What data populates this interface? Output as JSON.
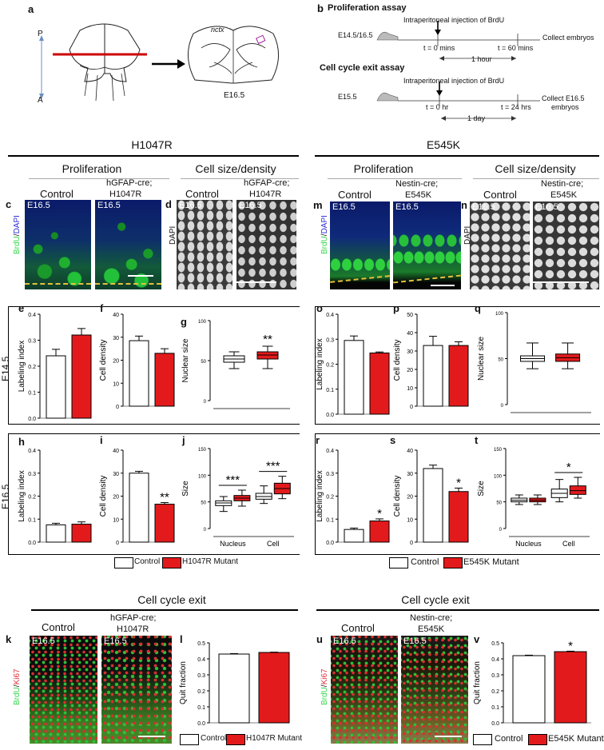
{
  "schematic": {
    "label_a": "a",
    "axis_p": "P",
    "axis_a": "A",
    "section_ncx": "nctx",
    "section_stage": "E16.5"
  },
  "assays": {
    "label_b": "b",
    "prolif_title": "Proliferation assay",
    "prolif_inject": "Intraperitoneal injection of BrdU",
    "prolif_stage": "E14.5/16.5",
    "prolif_t0": "t = 0 mins",
    "prolif_t1": "t = 60 mins",
    "prolif_dur": "1 hour",
    "prolif_collect": "Collect embryos",
    "exit_title": "Cell cycle exit assay",
    "exit_inject": "Intraperitoneal injection of BrdU",
    "exit_stage": "E15.5",
    "exit_t0": "t = 0 hr",
    "exit_t1": "t = 24 hrs",
    "exit_dur": "1 day",
    "exit_collect_1": "Collect E16.5",
    "exit_collect_2": "embryos"
  },
  "headers": {
    "h1047r": "H1047R",
    "e545k": "E545K",
    "proliferation": "Proliferation",
    "cellsize": "Cell size/density",
    "control": "Control",
    "hgfap_1": "hGFAP-cre;",
    "hgfap_2": "H1047R",
    "nestin_1": "Nestin-cre;",
    "nestin_2": "E545K",
    "e145": "E14.5",
    "e165": "E16.5",
    "cellcycle": "Cell cycle exit"
  },
  "panel_letters": {
    "c": "c",
    "d": "d",
    "e": "e",
    "f": "f",
    "g": "g",
    "h": "h",
    "i": "i",
    "j": "j",
    "k": "k",
    "l": "l",
    "m": "m",
    "n": "n",
    "o": "o",
    "p": "p",
    "q": "q",
    "r": "r",
    "s": "s",
    "t": "t",
    "u": "u",
    "v": "v"
  },
  "micro": {
    "stamp": "E16.5",
    "brdu": "BrdU",
    "dapi": "DAPI",
    "ki67": "Ki67",
    "sep": "/"
  },
  "legends": {
    "control": "Control",
    "h1047r_mutant": "H1047R Mutant",
    "e545k_mutant": "E545K Mutant"
  },
  "colors": {
    "mutant": "#e31a1c",
    "control": "#ffffff",
    "brdu": "#37d64b",
    "dapi": "#2a2ad8",
    "ki67": "#e0303a"
  },
  "chart_data": [
    {
      "panel": "e",
      "type": "bar",
      "ylabel": "Labeling index",
      "ylim": [
        0,
        0.4
      ],
      "ticks": [
        "0.0",
        "0.1",
        "0.2",
        "0.3",
        "0.4"
      ],
      "values": [
        0.24,
        0.32
      ],
      "errors": [
        0.025,
        0.025
      ],
      "sig": ""
    },
    {
      "panel": "f",
      "type": "bar",
      "ylabel": "Cell density",
      "ylim": [
        0,
        40
      ],
      "ticks": [
        "0",
        "10",
        "20",
        "30",
        "40"
      ],
      "values": [
        28.5,
        23
      ],
      "errors": [
        2,
        2
      ],
      "sig": ""
    },
    {
      "panel": "g",
      "type": "box",
      "ylabel": "Nuclear size",
      "ylim": [
        0,
        100
      ],
      "ticks": [
        "0",
        "50",
        "100"
      ],
      "boxes": [
        {
          "min": 40,
          "q1": 48,
          "med": 52,
          "q3": 56,
          "max": 61
        },
        {
          "min": 40,
          "q1": 52,
          "med": 57,
          "q3": 61,
          "max": 68
        }
      ],
      "sig": "**"
    },
    {
      "panel": "h",
      "type": "bar",
      "ylabel": "Labeling index",
      "ylim": [
        0,
        0.4
      ],
      "ticks": [
        "0.0",
        "0.1",
        "0.2",
        "0.3",
        "0.4"
      ],
      "values": [
        0.075,
        0.078
      ],
      "errors": [
        0.007,
        0.01
      ],
      "sig": ""
    },
    {
      "panel": "i",
      "type": "bar",
      "ylabel": "Cell density",
      "ylim": [
        0,
        40
      ],
      "ticks": [
        "0",
        "10",
        "20",
        "30",
        "40"
      ],
      "values": [
        30,
        16.5
      ],
      "errors": [
        0.8,
        0.7
      ],
      "sig": "**"
    },
    {
      "panel": "j",
      "type": "box",
      "ylabel": "Size",
      "ylim": [
        0,
        150
      ],
      "ticks": [
        "0",
        "50",
        "100",
        "150"
      ],
      "categories": [
        "Nucleus",
        "Cell"
      ],
      "boxes": [
        {
          "min": 32,
          "q1": 43,
          "med": 48,
          "q3": 52,
          "max": 60
        },
        {
          "min": 42,
          "q1": 52,
          "med": 57,
          "q3": 62,
          "max": 72
        },
        {
          "min": 47,
          "q1": 55,
          "med": 60,
          "q3": 66,
          "max": 80
        },
        {
          "min": 56,
          "q1": 65,
          "med": 75,
          "q3": 85,
          "max": 98
        }
      ],
      "sig": [
        "***",
        "***"
      ]
    },
    {
      "panel": "o",
      "type": "bar",
      "ylabel": "Labeling index",
      "ylim": [
        0,
        0.4
      ],
      "ticks": [
        "0.0",
        "0.1",
        "0.2",
        "0.3",
        "0.4"
      ],
      "values": [
        0.295,
        0.245
      ],
      "errors": [
        0.018,
        0.004
      ],
      "sig": ""
    },
    {
      "panel": "p",
      "type": "bar",
      "ylabel": "Cell density",
      "ylim": [
        0,
        50
      ],
      "ticks": [
        "0",
        "10",
        "20",
        "30",
        "40",
        "50"
      ],
      "values": [
        33,
        33
      ],
      "errors": [
        5,
        2
      ],
      "sig": ""
    },
    {
      "panel": "q",
      "type": "box",
      "ylabel": "Nuclear size",
      "ylim": [
        0,
        100
      ],
      "ticks": [
        "0",
        "50",
        "100"
      ],
      "boxes": [
        {
          "min": 39,
          "q1": 47,
          "med": 50,
          "q3": 53,
          "max": 67
        },
        {
          "min": 39,
          "q1": 47,
          "med": 51,
          "q3": 55,
          "max": 67
        }
      ],
      "sig": ""
    },
    {
      "panel": "r",
      "type": "bar",
      "ylabel": "Labeling index",
      "ylim": [
        0,
        0.4
      ],
      "ticks": [
        "0.0",
        "0.1",
        "0.2",
        "0.3",
        "0.4"
      ],
      "values": [
        0.055,
        0.092
      ],
      "errors": [
        0.006,
        0.009
      ],
      "sig": "*"
    },
    {
      "panel": "s",
      "type": "bar",
      "ylabel": "Cell density",
      "ylim": [
        0,
        40
      ],
      "ticks": [
        "0",
        "10",
        "20",
        "30",
        "40"
      ],
      "values": [
        32,
        22
      ],
      "errors": [
        1.5,
        1.5
      ],
      "sig": "*"
    },
    {
      "panel": "t",
      "type": "box",
      "ylabel": "Size",
      "ylim": [
        0,
        150
      ],
      "ticks": [
        "0",
        "50",
        "100",
        "150"
      ],
      "categories": [
        "Nucleus",
        "Cell"
      ],
      "boxes": [
        {
          "min": 45,
          "q1": 50,
          "med": 53,
          "q3": 57,
          "max": 63
        },
        {
          "min": 45,
          "q1": 50,
          "med": 53,
          "q3": 57,
          "max": 63
        },
        {
          "min": 50,
          "q1": 58,
          "med": 66,
          "q3": 74,
          "max": 92
        },
        {
          "min": 57,
          "q1": 64,
          "med": 71,
          "q3": 80,
          "max": 96
        }
      ],
      "sig": [
        "",
        "*"
      ]
    },
    {
      "panel": "l",
      "type": "bar",
      "ylabel": "Quit fraction",
      "ylim": [
        0,
        0.5
      ],
      "ticks": [
        "0.0",
        "0.1",
        "0.2",
        "0.3",
        "0.4",
        "0.5"
      ],
      "values": [
        0.43,
        0.44
      ],
      "errors": [
        0.003,
        0.002
      ],
      "sig": ""
    },
    {
      "panel": "v",
      "type": "bar",
      "ylabel": "Quit fraction",
      "ylim": [
        0,
        0.5
      ],
      "ticks": [
        "0.0",
        "0.1",
        "0.2",
        "0.3",
        "0.4",
        "0.5"
      ],
      "values": [
        0.42,
        0.445
      ],
      "errors": [
        0.003,
        0.003
      ],
      "sig": "*"
    }
  ]
}
